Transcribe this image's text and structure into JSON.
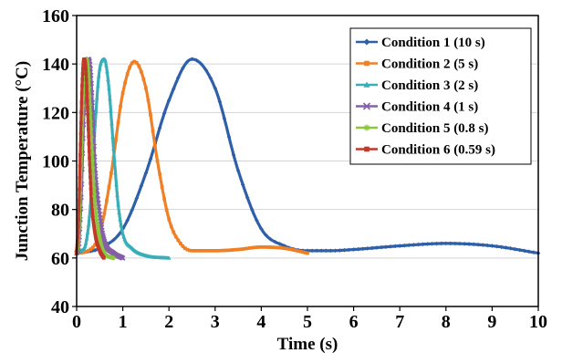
{
  "chart_data": {
    "type": "line",
    "title": "",
    "xlabel": "Time (s)",
    "ylabel": "Junction Temperature (°C)",
    "xlim": [
      0,
      10
    ],
    "ylim": [
      40,
      160
    ],
    "xticks": [
      0,
      1,
      2,
      3,
      4,
      5,
      6,
      7,
      8,
      9,
      10
    ],
    "yticks": [
      40,
      60,
      80,
      100,
      120,
      140,
      160
    ],
    "grid": "horizontal",
    "legend_position": "top-right",
    "series": [
      {
        "name": "Condition 1 (10 s)",
        "color": "#2e5fa8",
        "marker": "diamond",
        "x": [
          0,
          0.5,
          1,
          1.5,
          2,
          2.5,
          3,
          3.5,
          4,
          4.5,
          5,
          5.5,
          6,
          7,
          8,
          9,
          10
        ],
        "y": [
          62,
          64,
          72,
          95,
          125,
          142,
          130,
          96,
          72,
          65,
          63,
          63,
          63.5,
          65,
          66,
          65,
          62
        ]
      },
      {
        "name": "Condition 2 (5 s)",
        "color": "#f07f25",
        "marker": "square",
        "x": [
          0,
          0.25,
          0.5,
          0.75,
          1,
          1.25,
          1.5,
          1.75,
          2,
          2.25,
          2.5,
          3,
          3.5,
          4,
          4.5,
          5
        ],
        "y": [
          62,
          63,
          70,
          95,
          128,
          141,
          130,
          100,
          76,
          66,
          63,
          63,
          63.5,
          64.5,
          64,
          62
        ]
      },
      {
        "name": "Condition 3 (2 s)",
        "color": "#3aaeb8",
        "marker": "triangle",
        "x": [
          0,
          0.1,
          0.2,
          0.3,
          0.4,
          0.5,
          0.6,
          0.7,
          0.8,
          0.9,
          1,
          1.2,
          1.5,
          2
        ],
        "y": [
          62,
          63,
          66,
          82,
          115,
          138,
          142,
          130,
          105,
          82,
          70,
          64,
          61,
          60
        ]
      },
      {
        "name": "Condition 4 (1 s)",
        "color": "#8560a8",
        "marker": "x",
        "x": [
          0,
          0.05,
          0.1,
          0.15,
          0.2,
          0.25,
          0.3,
          0.35,
          0.4,
          0.5,
          0.6,
          0.8,
          1
        ],
        "y": [
          62,
          66,
          85,
          115,
          136,
          142,
          138,
          120,
          98,
          78,
          67,
          62,
          60
        ]
      },
      {
        "name": "Condition 5 (0.8 s)",
        "color": "#8dc63f",
        "marker": "star",
        "x": [
          0,
          0.05,
          0.1,
          0.15,
          0.2,
          0.25,
          0.3,
          0.35,
          0.4,
          0.5,
          0.6,
          0.8
        ],
        "y": [
          62,
          70,
          100,
          130,
          142,
          138,
          118,
          98,
          82,
          68,
          62,
          60
        ]
      },
      {
        "name": "Condition 6 (0.59 s)",
        "color": "#c0392b",
        "marker": "square",
        "x": [
          0,
          0.04,
          0.08,
          0.12,
          0.16,
          0.2,
          0.24,
          0.28,
          0.32,
          0.4,
          0.5,
          0.59
        ],
        "y": [
          62,
          75,
          105,
          132,
          142,
          138,
          120,
          100,
          84,
          70,
          63,
          60
        ]
      }
    ]
  }
}
